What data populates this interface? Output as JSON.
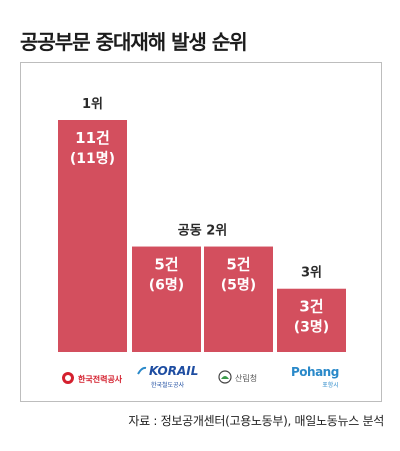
{
  "title": "공공부문 중대재해 발생 순위",
  "source": "자료 : 정보공개센터(고용노동부), 매일노동뉴스 분석",
  "colors": {
    "bar": "#d34f5e",
    "bar_text": "#ffffff",
    "rank_text": "#2a2a2a"
  },
  "logos": [
    {
      "name": "한국전력공사 logo",
      "text": "한국전력공사",
      "icon": "kepco-circle-icon",
      "color": "#d4202e"
    },
    {
      "name": "코레일 logo",
      "text": "KORAIL",
      "sub": "한국철도공사",
      "icon": "korail-swoosh-icon",
      "color": "#1e4da1"
    },
    {
      "name": "산림청 logo",
      "text": "산림청",
      "icon": "forest-service-circle-icon",
      "color": "#666666"
    },
    {
      "name": "포항시 logo",
      "text": "Pohang",
      "sub": "포항시",
      "icon": "pohang-wordmark-icon",
      "color": "#2a89c9"
    }
  ],
  "chart_data": {
    "type": "bar",
    "categories": [
      "한국전력공사",
      "한국철도공사",
      "산림청",
      "포항시"
    ],
    "values": [
      11,
      5,
      5,
      3
    ],
    "persons": [
      11,
      6,
      5,
      3
    ],
    "value_labels": [
      "11건",
      "5건",
      "5건",
      "3건"
    ],
    "person_labels": [
      "(11명)",
      "(6명)",
      "(5명)",
      "(3명)"
    ],
    "rank_labels": [
      "1위",
      "공동 2위",
      "",
      "3위"
    ],
    "ylim": [
      0,
      11
    ],
    "grid": false
  }
}
